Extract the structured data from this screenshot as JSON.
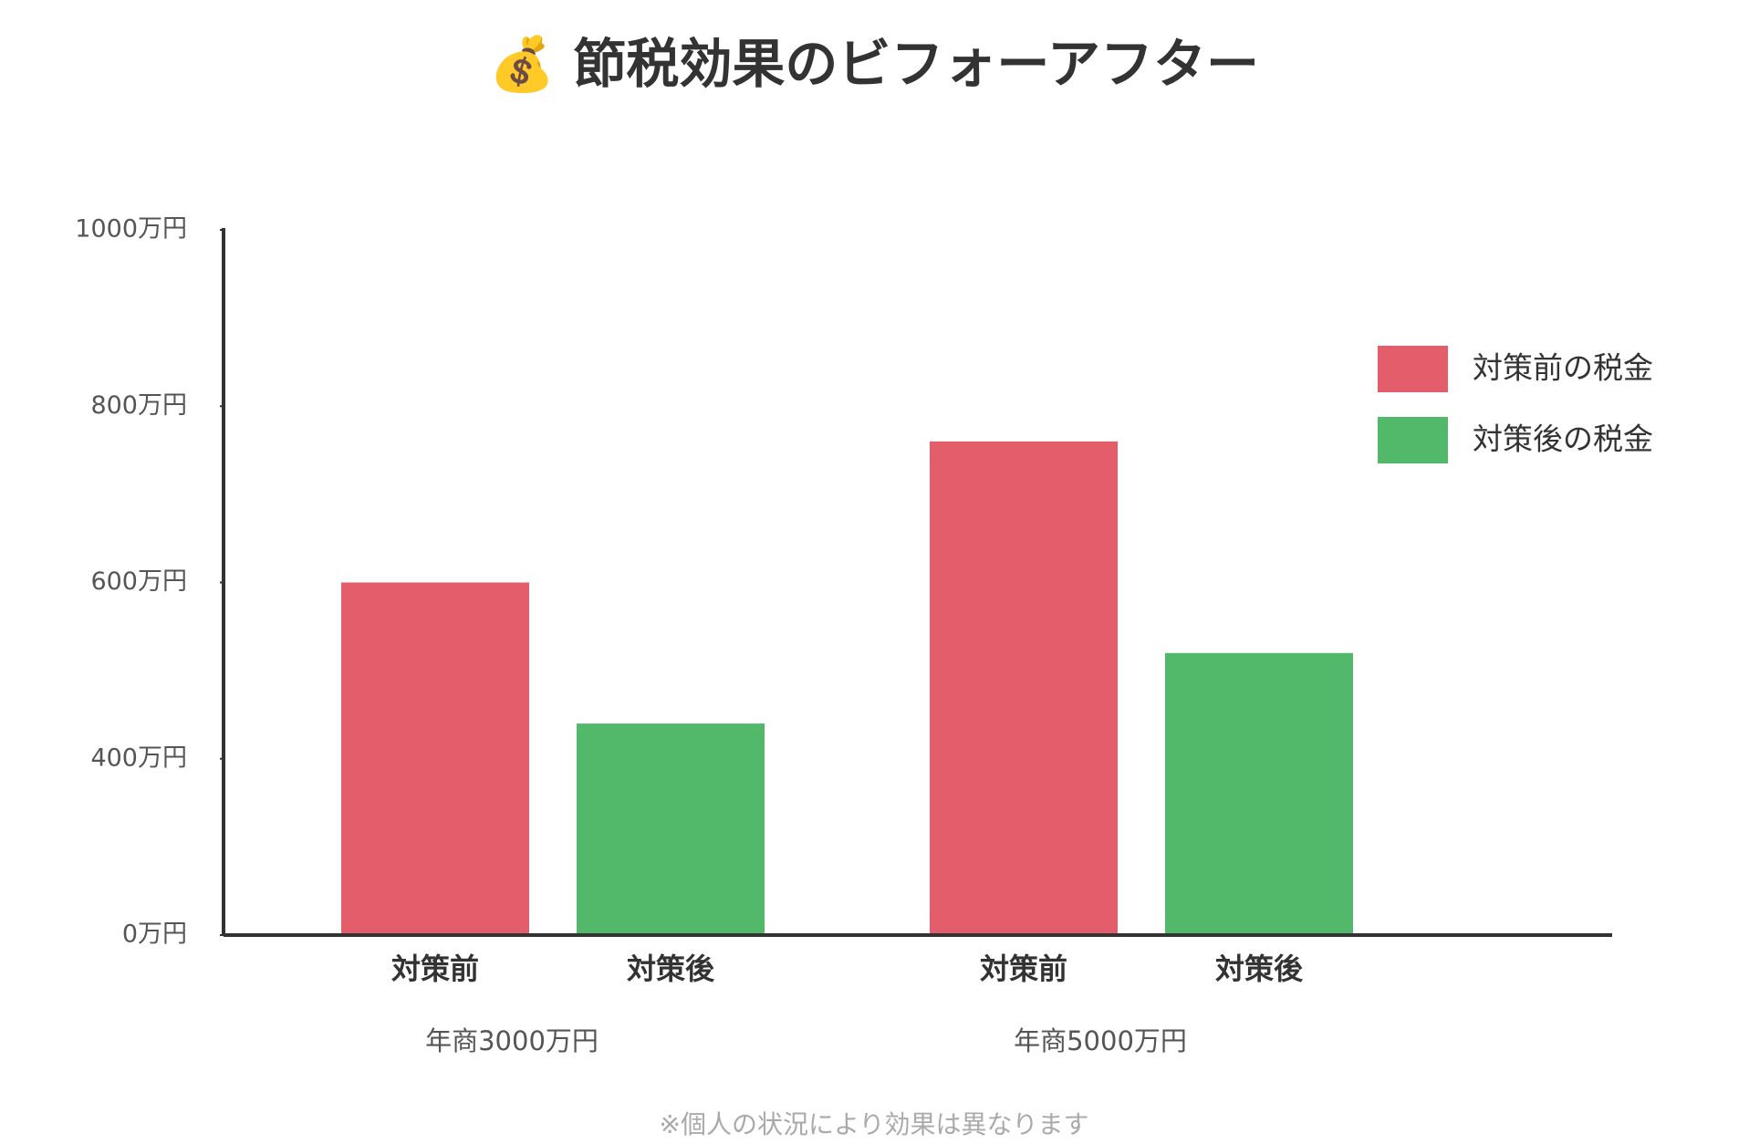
{
  "chart_data": {
    "type": "bar",
    "title": "💰 節税効果のビフォーアフター",
    "categories": [
      "年商3000万円",
      "年商5000万円"
    ],
    "bar_labels": [
      "対策前",
      "対策後",
      "対策前",
      "対策後"
    ],
    "series": [
      {
        "name": "対策前の税金",
        "color": "#e35d6a",
        "values": [
          600,
          760
        ]
      },
      {
        "name": "対策後の税金",
        "color": "#52b86a",
        "values": [
          440,
          520
        ]
      }
    ],
    "ylim": [
      0,
      1000
    ],
    "yticks": [
      {
        "value": 0,
        "label": "0万円"
      },
      {
        "value": 400,
        "label": "400万円"
      },
      {
        "value": 600,
        "label": "600万円"
      },
      {
        "value": 800,
        "label": "800万円"
      },
      {
        "value": 1000,
        "label": "1000万円"
      }
    ],
    "legend": "right",
    "note": "※個人の状況により効果は異なります"
  }
}
